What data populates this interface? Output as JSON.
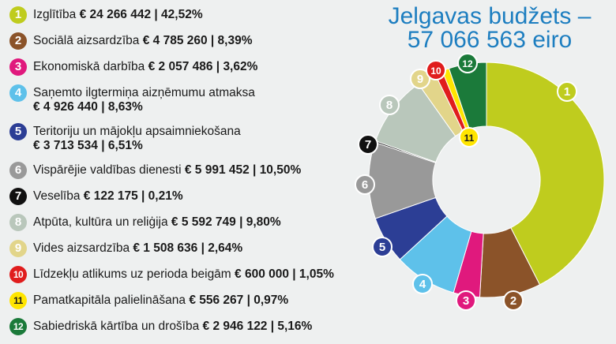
{
  "title": {
    "line1": "Jelgavas budžets –",
    "line2": "57 066 563 eiro"
  },
  "chart_data": {
    "type": "pie",
    "donut": true,
    "total": "57 066 563 eiro",
    "categories": [
      {
        "num": "1",
        "label": "Izglītība",
        "value": "€ 24 266 442",
        "percent": "42,52%",
        "pct": 42.52,
        "color": "#bfcc1e"
      },
      {
        "num": "2",
        "label": "Sociālā aizsardzība",
        "value": "€ 4 785 260",
        "percent": "8,39%",
        "pct": 8.39,
        "color": "#8b5329"
      },
      {
        "num": "3",
        "label": "Ekonomiskā darbība",
        "value": "€ 2 057 486",
        "percent": "3,62%",
        "pct": 3.62,
        "color": "#e0197d"
      },
      {
        "num": "4",
        "label": "Saņemto ilgtermiņa aizņēmumu atmaksa",
        "value": "€ 4 926 440",
        "percent": "8,63%",
        "pct": 8.63,
        "color": "#5ec1ea",
        "wrap": true
      },
      {
        "num": "5",
        "label": "Teritoriju un mājokļu apsaimniekošana",
        "value": "€ 3 713 534",
        "percent": "6,51%",
        "pct": 6.51,
        "color": "#2c3e95",
        "wrap": true
      },
      {
        "num": "6",
        "label": "Vispārējie valdības dienesti",
        "value": "€ 5 991 452",
        "percent": "10,50%",
        "pct": 10.5,
        "color": "#999999"
      },
      {
        "num": "7",
        "label": "Veselība",
        "value": "€ 122 175",
        "percent": "0,21%",
        "pct": 0.21,
        "color": "#111111"
      },
      {
        "num": "8",
        "label": "Atpūta, kultūra un reliģija",
        "value": "€ 5 592 749",
        "percent": "9,80%",
        "pct": 9.8,
        "color": "#b9c7bb"
      },
      {
        "num": "9",
        "label": "Vides aizsardzība",
        "value": "€ 1 508 636",
        "percent": "2,64%",
        "pct": 2.64,
        "color": "#e2d58a"
      },
      {
        "num": "10",
        "label": "Līdzekļu atlikums uz perioda beigām",
        "value": "€ 600 000",
        "percent": "1,05%",
        "pct": 1.05,
        "color": "#e01d1d"
      },
      {
        "num": "11",
        "label": "Pamatkapitāla palielināšana",
        "value": "€ 556 267",
        "percent": "0,97%",
        "pct": 0.97,
        "color": "#ffe500",
        "dark_text": true
      },
      {
        "num": "12",
        "label": "Sabiedriskā kārtība un drošība",
        "value": "€ 2 946 122",
        "percent": "5,16%",
        "pct": 5.16,
        "color": "#1b7a3a"
      }
    ]
  }
}
